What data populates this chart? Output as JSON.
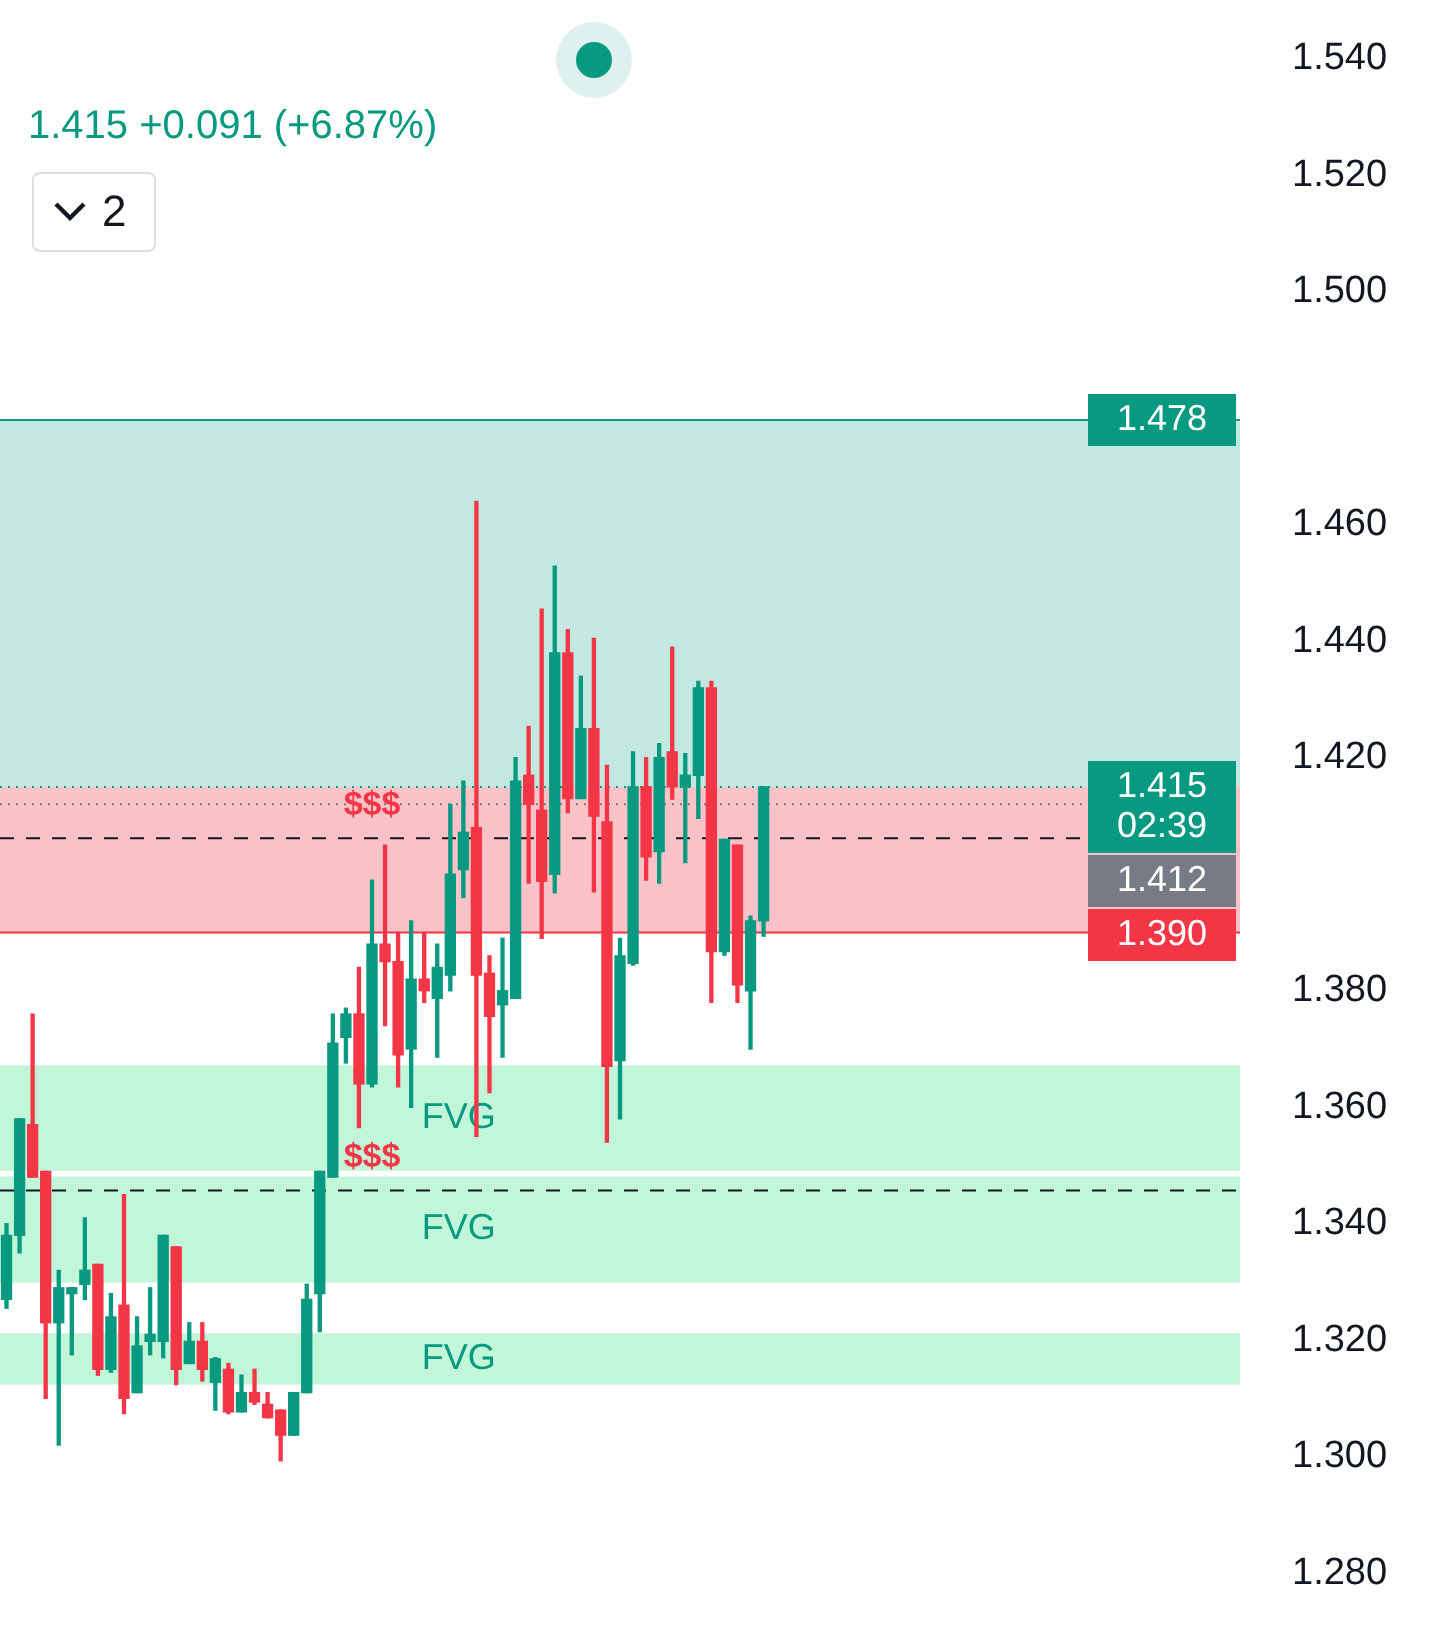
{
  "chart_data": {
    "type": "candlestick",
    "categories": [
      null,
      null,
      null,
      null,
      null,
      null,
      null,
      null,
      null,
      null,
      null,
      null,
      null,
      null,
      null,
      null,
      null,
      null,
      null,
      null,
      null,
      null,
      null,
      null,
      null,
      null,
      null,
      null,
      null,
      null,
      null,
      null,
      null,
      null,
      null,
      null,
      null,
      null,
      null,
      null,
      null,
      null,
      null,
      null,
      null,
      null,
      null,
      null,
      null,
      null,
      null,
      null,
      null,
      null,
      null,
      null,
      null,
      null,
      null,
      null,
      null,
      null,
      null,
      null,
      null,
      null,
      null,
      null,
      null,
      null,
      null,
      null,
      null,
      null,
      null,
      null,
      null,
      null,
      null,
      null,
      null,
      null,
      null,
      null,
      null,
      null,
      null,
      null,
      null,
      null,
      null,
      null,
      null,
      null,
      null
    ],
    "ohlc": [
      [
        1.327,
        1.34,
        1.3255,
        1.338
      ],
      [
        1.338,
        1.358,
        1.335,
        1.358
      ],
      [
        1.357,
        1.376,
        1.348,
        1.348
      ],
      [
        1.349,
        1.349,
        1.31,
        1.323
      ],
      [
        1.323,
        1.332,
        1.302,
        1.329
      ],
      [
        1.328,
        1.329,
        1.3175,
        1.329
      ],
      [
        1.3296,
        1.341,
        1.327,
        1.332
      ],
      [
        1.333,
        1.333,
        1.314,
        1.315
      ],
      [
        1.315,
        1.328,
        1.3145,
        1.324
      ],
      [
        1.326,
        1.345,
        1.3074,
        1.31
      ],
      [
        1.311,
        1.324,
        1.311,
        1.319
      ],
      [
        1.3198,
        1.329,
        1.3175,
        1.321
      ],
      [
        1.3198,
        1.338,
        1.317,
        1.338
      ],
      [
        1.336,
        1.336,
        1.3124,
        1.315
      ],
      [
        1.316,
        1.323,
        1.316,
        1.3198
      ],
      [
        1.3198,
        1.323,
        1.313,
        1.315
      ],
      [
        1.3128,
        1.317,
        1.308,
        1.3168
      ],
      [
        1.315,
        1.316,
        1.3074,
        1.3077
      ],
      [
        1.3077,
        1.314,
        1.3077,
        1.311
      ],
      [
        1.311,
        1.315,
        1.309,
        1.3094
      ],
      [
        1.309,
        1.311,
        1.3067,
        1.3067
      ],
      [
        1.308,
        1.308,
        1.2993,
        1.3037
      ],
      [
        1.3037,
        1.311,
        1.3037,
        1.311
      ],
      [
        1.311,
        1.3296,
        1.311,
        1.327
      ],
      [
        1.328,
        1.349,
        1.3215,
        1.349
      ],
      [
        1.348,
        1.376,
        1.348,
        1.371
      ],
      [
        1.372,
        1.377,
        1.3676,
        1.376
      ],
      [
        1.376,
        1.384,
        1.3565,
        1.364
      ],
      [
        1.364,
        1.399,
        1.3635,
        1.388
      ],
      [
        1.388,
        1.405,
        1.374,
        1.385
      ],
      [
        1.385,
        1.39,
        1.3635,
        1.369
      ],
      [
        1.37,
        1.392,
        1.36,
        1.382
      ],
      [
        1.382,
        1.39,
        1.378,
        1.38
      ],
      [
        1.3787,
        1.388,
        1.3686,
        1.384
      ],
      [
        1.3827,
        1.412,
        1.38,
        1.4
      ],
      [
        1.4008,
        1.416,
        1.396,
        1.4072
      ],
      [
        1.408,
        1.464,
        1.355,
        1.3827
      ],
      [
        1.383,
        1.386,
        1.3625,
        1.3756
      ],
      [
        1.3776,
        1.389,
        1.3686,
        1.38
      ],
      [
        1.3787,
        1.42,
        1.3787,
        1.416
      ],
      [
        1.417,
        1.4254,
        1.3985,
        1.412
      ],
      [
        1.411,
        1.4455,
        1.389,
        1.3988
      ],
      [
        1.4,
        1.4529,
        1.3968,
        1.438
      ],
      [
        1.438,
        1.442,
        1.4106,
        1.413
      ],
      [
        1.413,
        1.434,
        1.413,
        1.425
      ],
      [
        1.425,
        1.4405,
        1.397,
        1.41
      ],
      [
        1.409,
        1.4187,
        1.354,
        1.367
      ],
      [
        1.368,
        1.389,
        1.358,
        1.386
      ],
      [
        1.3847,
        1.421,
        1.3844,
        1.415
      ],
      [
        1.415,
        1.42,
        1.399,
        1.403
      ],
      [
        1.4039,
        1.4224,
        1.3985,
        1.42
      ],
      [
        1.421,
        1.439,
        1.4129,
        1.415
      ],
      [
        1.415,
        1.4207,
        1.402,
        1.417
      ],
      [
        1.417,
        1.4331,
        1.4096,
        1.432
      ],
      [
        1.432,
        1.4331,
        1.378,
        1.3867
      ],
      [
        1.3867,
        1.406,
        1.3861,
        1.406
      ],
      [
        1.405,
        1.405,
        1.378,
        1.381
      ],
      [
        1.38,
        1.3928,
        1.37,
        1.392
      ],
      [
        1.392,
        1.415,
        1.3894,
        1.415
      ],
      null,
      null,
      null,
      null,
      null,
      null,
      null,
      null,
      null,
      null,
      null,
      null,
      null,
      null,
      null,
      null,
      null,
      null,
      null,
      null,
      null,
      null,
      null,
      null,
      null,
      null,
      null,
      null,
      null,
      null,
      null,
      null,
      null,
      null,
      null,
      null
    ],
    "colors": [
      "#089981",
      "#089981",
      "#f23645",
      "#f23645",
      "#089981",
      "#089981",
      "#089981",
      "#f23645",
      "#089981",
      "#f23645",
      "#089981",
      "#089981",
      "#089981",
      "#f23645",
      "#089981",
      "#f23645",
      "#089981",
      "#f23645",
      "#089981",
      "#f23645",
      "#f23645",
      "#f23645",
      "#089981",
      "#089981",
      "#089981",
      "#089981",
      "#089981",
      "#f23645",
      "#089981",
      "#f23645",
      "#f23645",
      "#089981",
      "#f23645",
      "#089981",
      "#089981",
      "#089981",
      "#f23645",
      "#f23645",
      "#089981",
      "#089981",
      "#f23645",
      "#f23645",
      "#089981",
      "#f23645",
      "#089981",
      "#f23645",
      "#f23645",
      "#089981",
      "#089981",
      "#f23645",
      "#089981",
      "#f23645",
      "#089981",
      "#089981",
      "#f23645",
      "#089981",
      "#f23645",
      "#089981",
      "#089981",
      null,
      null,
      null,
      null,
      null,
      null,
      null,
      null,
      null,
      null,
      null,
      null,
      null,
      null,
      null,
      null,
      null,
      null,
      null,
      null,
      null,
      null,
      null,
      null,
      null,
      null,
      null,
      null,
      null,
      null,
      null,
      null,
      null,
      null,
      null,
      null
    ],
    "ylim": [
      1.28,
      1.54
    ],
    "yticks": [
      {
        "value": 1.28,
        "label": "1.280"
      },
      {
        "value": 1.3,
        "label": "1.300"
      },
      {
        "value": 1.32,
        "label": "1.320"
      },
      {
        "value": 1.34,
        "label": "1.340"
      },
      {
        "value": 1.36,
        "label": "1.360"
      },
      {
        "value": 1.38,
        "label": "1.380"
      },
      {
        "value": 1.42,
        "label": "1.420"
      },
      {
        "value": 1.44,
        "label": "1.440"
      },
      {
        "value": 1.46,
        "label": "1.460"
      },
      {
        "value": 1.5,
        "label": "1.500"
      },
      {
        "value": 1.52,
        "label": "1.520"
      },
      {
        "value": 1.54,
        "label": "1.540"
      }
    ],
    "tick_labels": "y",
    "bands": [
      {
        "axis": "y",
        "from": 1.415,
        "to": 1.478,
        "color": "#a9ded6"
      },
      {
        "axis": "y",
        "from": 1.39,
        "to": 1.415,
        "color": "#f9aab0"
      },
      {
        "axis": "y",
        "from": 1.3491,
        "to": 1.3672,
        "label": "FVG",
        "color": "#a6f2c9"
      },
      {
        "axis": "y",
        "from": 1.3299,
        "to": 1.3481,
        "label": "FVG",
        "color": "#a6f2c9"
      },
      {
        "axis": "y",
        "from": 1.3124,
        "to": 1.3212,
        "label": "FVG",
        "color": "#a6f2c9"
      }
    ],
    "ref_lines": [
      {
        "axis": "y",
        "value": 1.478,
        "label": "1.478",
        "color": "#089981",
        "line_style": "solid"
      },
      {
        "axis": "y",
        "value": 1.415,
        "label": "1.415\n02:39",
        "color": "#089981",
        "line_style": "dotted"
      },
      {
        "axis": "y",
        "value": 1.412,
        "label": "1.412",
        "color": "#787b86",
        "line_style": "dotted"
      },
      {
        "axis": "y",
        "value": 1.39,
        "label": "1.390",
        "color": "#f23645",
        "line_style": "solid"
      },
      {
        "axis": "y",
        "value": 1.4062,
        "label": "$$$",
        "color": "#131722",
        "line_style": "dashed"
      },
      {
        "axis": "y",
        "value": 1.3457,
        "label": "$$$",
        "color": "#131722",
        "line_style": "dashed"
      }
    ],
    "annotations": [
      "1.415 +0.091 (+6.87%)",
      "2"
    ]
  }
}
